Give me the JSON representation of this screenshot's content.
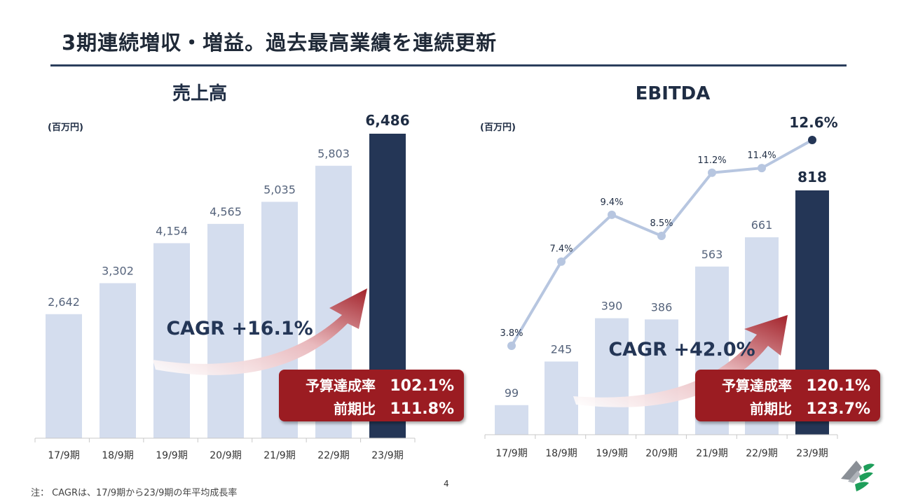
{
  "page": {
    "title": "3期連続増収・増益。過去最高業績を連続更新",
    "footnote": "注： CAGRは、17/9期から23/9期の年平均成長率",
    "page_number": "4"
  },
  "colors": {
    "bar": "#d4ddee",
    "highlight": "#243656",
    "callout": "#9b1b22",
    "line": "#b7c6e0"
  },
  "chart_data": [
    {
      "type": "bar",
      "title": "売上高",
      "unit_label": "(百万円)",
      "categories": [
        "17/9期",
        "18/9期",
        "19/9期",
        "20/9期",
        "21/9期",
        "22/9期",
        "23/9期"
      ],
      "values": [
        2642,
        3302,
        4154,
        4565,
        5035,
        5803,
        6486
      ],
      "value_labels": [
        "2,642",
        "3,302",
        "4,154",
        "4,565",
        "5,035",
        "5,803",
        "6,486"
      ],
      "highlight_index": 6,
      "cagr_label": "CAGR +16.1%",
      "callout": {
        "line1_label": "予算達成率",
        "line1_value": "102.1%",
        "line2_label": "前期比",
        "line2_value": "111.8%"
      }
    },
    {
      "type": "bar",
      "title": "EBITDA",
      "unit_label": "(百万円)",
      "categories": [
        "17/9期",
        "18/9期",
        "19/9期",
        "20/9期",
        "21/9期",
        "22/9期",
        "23/9期"
      ],
      "values": [
        99,
        245,
        390,
        386,
        563,
        661,
        818
      ],
      "value_labels": [
        "99",
        "245",
        "390",
        "386",
        "563",
        "661",
        "818"
      ],
      "highlight_index": 6,
      "margin_series": {
        "values": [
          3.8,
          7.4,
          9.4,
          8.5,
          11.2,
          11.4,
          12.6
        ],
        "labels": [
          "3.8%",
          "7.4%",
          "9.4%",
          "8.5%",
          "11.2%",
          "11.4%",
          "12.6%"
        ]
      },
      "cagr_label": "CAGR +42.0%",
      "callout": {
        "line1_label": "予算達成率",
        "line1_value": "120.1%",
        "line2_label": "前期比",
        "line2_value": "123.7%"
      }
    }
  ]
}
